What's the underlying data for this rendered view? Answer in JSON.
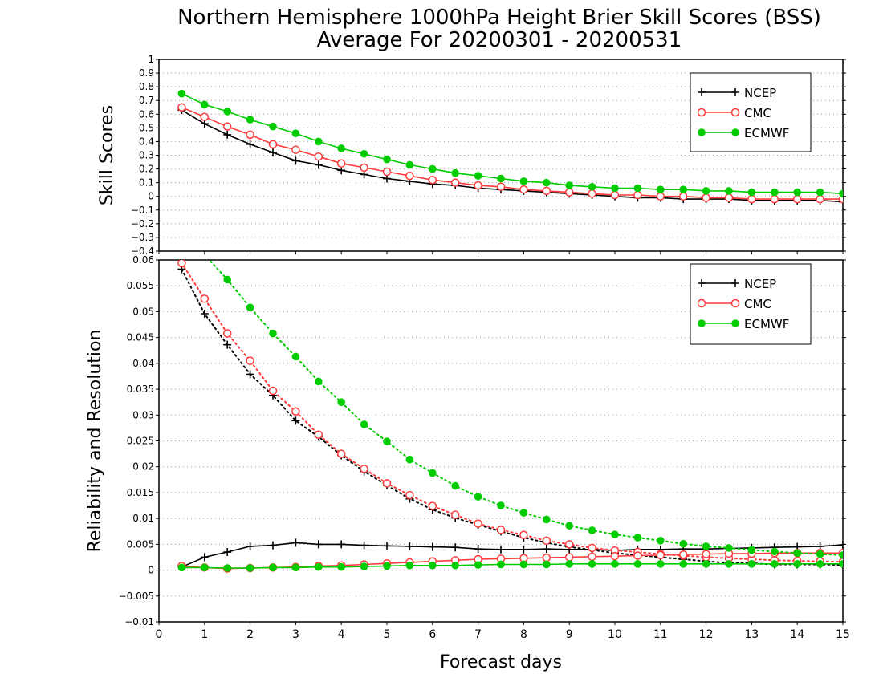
{
  "title": {
    "line1": "Northern Hemisphere 1000hPa Height Brier Skill Scores (BSS)",
    "line2": "Average For 20200301 - 20200531"
  },
  "colors": {
    "NCEP": "#000000",
    "CMC": "#ff3a3a",
    "ECMWF": "#00cc00",
    "grid": "#a0a0a0"
  },
  "chart_data": [
    {
      "type": "line",
      "panel": "top",
      "ylabel": "Skill Scores",
      "xlabel": "",
      "xlim": [
        0,
        15
      ],
      "ylim": [
        -0.4,
        1
      ],
      "grid": true,
      "legend_position": "top-right",
      "x_ticks": [
        "0",
        "1",
        "2",
        "3",
        "4",
        "5",
        "6",
        "7",
        "8",
        "9",
        "10",
        "11",
        "12",
        "13",
        "14",
        "15"
      ],
      "y_ticks": [
        "−0.4",
        "−0.3",
        "−0.2",
        "−0.1",
        "0",
        "0.1",
        "0.2",
        "0.3",
        "0.4",
        "0.5",
        "0.6",
        "0.7",
        "0.8",
        "0.9",
        "1"
      ],
      "x": [
        0.5,
        1,
        1.5,
        2,
        2.5,
        3,
        3.5,
        4,
        4.5,
        5,
        5.5,
        6,
        6.5,
        7,
        7.5,
        8,
        8.5,
        9,
        9.5,
        10,
        10.5,
        11,
        11.5,
        12,
        12.5,
        13,
        13.5,
        14,
        14.5,
        15
      ],
      "series": [
        {
          "name": "NCEP",
          "marker": "plus",
          "line": "solid",
          "values": [
            0.63,
            0.53,
            0.45,
            0.38,
            0.32,
            0.26,
            0.23,
            0.19,
            0.16,
            0.13,
            0.11,
            0.09,
            0.08,
            0.06,
            0.05,
            0.04,
            0.03,
            0.02,
            0.01,
            0.0,
            -0.01,
            -0.01,
            -0.02,
            -0.02,
            -0.02,
            -0.03,
            -0.03,
            -0.03,
            -0.03,
            -0.04
          ]
        },
        {
          "name": "CMC",
          "marker": "open-circle",
          "line": "solid",
          "values": [
            0.65,
            0.58,
            0.51,
            0.45,
            0.38,
            0.34,
            0.29,
            0.24,
            0.21,
            0.18,
            0.15,
            0.12,
            0.1,
            0.08,
            0.07,
            0.05,
            0.04,
            0.03,
            0.02,
            0.01,
            0.01,
            0.0,
            0.0,
            -0.01,
            -0.01,
            -0.02,
            -0.02,
            -0.02,
            -0.02,
            -0.02
          ]
        },
        {
          "name": "ECMWF",
          "marker": "filled-circle",
          "line": "solid",
          "values": [
            0.75,
            0.67,
            0.62,
            0.56,
            0.51,
            0.46,
            0.4,
            0.35,
            0.31,
            0.27,
            0.23,
            0.2,
            0.17,
            0.15,
            0.13,
            0.11,
            0.1,
            0.08,
            0.07,
            0.06,
            0.06,
            0.05,
            0.05,
            0.04,
            0.04,
            0.03,
            0.03,
            0.03,
            0.03,
            0.02
          ]
        }
      ]
    },
    {
      "type": "line",
      "panel": "bottom",
      "ylabel": "Reliability and Resolution",
      "xlabel": "Forecast days",
      "xlim": [
        0,
        15
      ],
      "ylim": [
        -0.01,
        0.06
      ],
      "grid": true,
      "legend_position": "top-right",
      "x_ticks": [
        "0",
        "1",
        "2",
        "3",
        "4",
        "5",
        "6",
        "7",
        "8",
        "9",
        "10",
        "11",
        "12",
        "13",
        "14",
        "15"
      ],
      "y_ticks": [
        "−0.01",
        "−0.005",
        "0",
        "0.005",
        "0.01",
        "0.015",
        "0.02",
        "0.025",
        "0.03",
        "0.035",
        "0.04",
        "0.045",
        "0.05",
        "0.055",
        "0.06"
      ],
      "x": [
        0.5,
        1,
        1.5,
        2,
        2.5,
        3,
        3.5,
        4,
        4.5,
        5,
        5.5,
        6,
        6.5,
        7,
        7.5,
        8,
        8.5,
        9,
        9.5,
        10,
        10.5,
        11,
        11.5,
        12,
        12.5,
        13,
        13.5,
        14,
        14.5,
        15
      ],
      "series": [
        {
          "name": "NCEP",
          "metric": "resolution",
          "marker": "plus",
          "line": "dotted",
          "values": [
            0.0582,
            0.0496,
            0.0436,
            0.0379,
            0.0338,
            0.0289,
            0.0258,
            0.0222,
            0.0191,
            0.0164,
            0.0138,
            0.0117,
            0.0101,
            0.0088,
            0.0075,
            0.0063,
            0.0053,
            0.0045,
            0.0039,
            0.0033,
            0.0029,
            0.0025,
            0.0021,
            0.0017,
            0.0014,
            0.0013,
            0.0011,
            0.0011,
            0.0011,
            0.001
          ]
        },
        {
          "name": "NCEP",
          "metric": "reliability",
          "marker": "plus",
          "line": "solid",
          "values": [
            0.0006,
            0.0025,
            0.0035,
            0.0046,
            0.0048,
            0.0053,
            0.005,
            0.005,
            0.0048,
            0.0047,
            0.0046,
            0.0045,
            0.0044,
            0.0041,
            0.004,
            0.004,
            0.0041,
            0.004,
            0.004,
            0.0038,
            0.004,
            0.004,
            0.0041,
            0.0041,
            0.0042,
            0.0043,
            0.0044,
            0.0045,
            0.0046,
            0.0049
          ]
        },
        {
          "name": "CMC",
          "metric": "resolution",
          "marker": "open-circle",
          "line": "dotted",
          "values": [
            0.0594,
            0.0525,
            0.0458,
            0.0405,
            0.0347,
            0.0307,
            0.0262,
            0.0225,
            0.0196,
            0.0168,
            0.0145,
            0.0124,
            0.0107,
            0.009,
            0.0078,
            0.0068,
            0.0057,
            0.005,
            0.0043,
            0.0038,
            0.0035,
            0.0031,
            0.0028,
            0.0025,
            0.0023,
            0.0021,
            0.0019,
            0.0018,
            0.0017,
            0.0016
          ]
        },
        {
          "name": "CMC",
          "metric": "reliability",
          "marker": "open-circle",
          "line": "solid",
          "values": [
            0.0008,
            0.0005,
            0.0003,
            0.0004,
            0.0005,
            0.0006,
            0.0008,
            0.0009,
            0.0011,
            0.0013,
            0.0015,
            0.0017,
            0.0019,
            0.0021,
            0.0022,
            0.0023,
            0.0024,
            0.0025,
            0.0026,
            0.0027,
            0.0028,
            0.0029,
            0.003,
            0.0031,
            0.0032,
            0.0032,
            0.0033,
            0.0033,
            0.0033,
            0.0033
          ]
        },
        {
          "name": "ECMWF",
          "metric": "resolution",
          "marker": "filled-circle",
          "line": "dotted",
          "values": [
            0.066,
            0.061,
            0.0562,
            0.0508,
            0.0458,
            0.0413,
            0.0365,
            0.0325,
            0.0282,
            0.0249,
            0.0214,
            0.0188,
            0.0163,
            0.0142,
            0.0125,
            0.0111,
            0.0098,
            0.0086,
            0.0077,
            0.0069,
            0.0063,
            0.0057,
            0.0051,
            0.0046,
            0.0043,
            0.0039,
            0.0036,
            0.0033,
            0.0031,
            0.0029
          ]
        },
        {
          "name": "ECMWF",
          "metric": "reliability",
          "marker": "filled-circle",
          "line": "solid",
          "values": [
            0.0005,
            0.0005,
            0.0004,
            0.0004,
            0.0005,
            0.0005,
            0.0006,
            0.0006,
            0.0007,
            0.0008,
            0.0009,
            0.0009,
            0.0009,
            0.001,
            0.0011,
            0.0011,
            0.0011,
            0.0012,
            0.0012,
            0.0012,
            0.0012,
            0.0012,
            0.0012,
            0.0012,
            0.0012,
            0.0012,
            0.0012,
            0.0012,
            0.0012,
            0.0012
          ]
        }
      ]
    }
  ]
}
